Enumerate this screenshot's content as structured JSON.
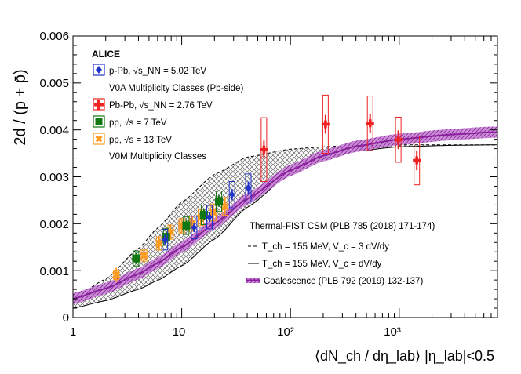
{
  "chart_data": {
    "type": "scatter",
    "title": "",
    "xlabel": "⟨dN_ch / dη_lab⟩ |η_lab|<0.5",
    "ylabel": "2d / (p + p̄)",
    "xscale": "log",
    "xlim": [
      1,
      8000
    ],
    "ylim": [
      0,
      0.006
    ],
    "yticks": [
      "0",
      "0.001",
      "0.002",
      "0.003",
      "0.004",
      "0.005",
      "0.006"
    ],
    "xticks": [
      "1",
      "10",
      "10²",
      "10³"
    ],
    "legend_left": {
      "experiment": "ALICE",
      "items": [
        "p-Pb, √s_NN = 5.02 TeV",
        "V0A Multiplicity Classes (Pb-side)",
        "Pb-Pb, √s_NN = 2.76 TeV",
        "pp, √s = 7 TeV",
        "pp, √s = 13 TeV",
        "V0M Multiplicity Classes"
      ]
    },
    "legend_right": {
      "title": "Thermal-FIST CSM (PLB 785 (2018) 171-174)",
      "items": [
        "T_ch = 155 MeV, V_c = 3 dV/dy",
        "T_ch = 155 MeV, V_c = dV/dy",
        "Coalescence (PLB 792 (2019) 132-137)"
      ]
    },
    "series": [
      {
        "name": "pp 13 TeV",
        "color": "#FF9A1E",
        "points": [
          {
            "x": 2.5,
            "y": 0.00091,
            "ye": 0.00015,
            "yse": 0.0001
          },
          {
            "x": 4.5,
            "y": 0.00132,
            "ye": 0.00015,
            "yse": 0.00012
          },
          {
            "x": 6.2,
            "y": 0.00158,
            "ye": 0.00015,
            "yse": 0.00014
          },
          {
            "x": 7.9,
            "y": 0.00182,
            "ye": 0.00016,
            "yse": 0.00015
          },
          {
            "x": 10.0,
            "y": 0.00195,
            "ye": 0.00016,
            "yse": 0.00016
          },
          {
            "x": 12.5,
            "y": 0.002,
            "ye": 0.00016,
            "yse": 0.00016
          },
          {
            "x": 15.0,
            "y": 0.00213,
            "ye": 0.00016,
            "yse": 0.00017
          },
          {
            "x": 19.5,
            "y": 0.00224,
            "ye": 0.00016,
            "yse": 0.00018
          },
          {
            "x": 25.0,
            "y": 0.00237,
            "ye": 0.00017,
            "yse": 0.00019
          }
        ]
      },
      {
        "name": "pp 7 TeV",
        "color": "#117711",
        "points": [
          {
            "x": 3.8,
            "y": 0.00126,
            "ye": 0.00012,
            "yse": 0.00016
          },
          {
            "x": 7.2,
            "y": 0.00172,
            "ye": 0.00012,
            "yse": 0.00018
          },
          {
            "x": 11.0,
            "y": 0.00196,
            "ye": 0.00012,
            "yse": 0.00019
          },
          {
            "x": 16.0,
            "y": 0.00219,
            "ye": 0.00012,
            "yse": 0.00021
          },
          {
            "x": 22.0,
            "y": 0.00248,
            "ye": 0.00012,
            "yse": 0.00022
          }
        ]
      },
      {
        "name": "p-Pb 5.02 TeV",
        "color": "#2233CC",
        "points": [
          {
            "x": 7.0,
            "y": 0.00166,
            "ye": 0.0001,
            "yse": 0.00022
          },
          {
            "x": 13.0,
            "y": 0.00192,
            "ye": 0.0001,
            "yse": 0.00024
          },
          {
            "x": 18.0,
            "y": 0.00214,
            "ye": 0.0001,
            "yse": 0.00025
          },
          {
            "x": 29.0,
            "y": 0.00262,
            "ye": 0.00012,
            "yse": 0.00028
          },
          {
            "x": 41.0,
            "y": 0.00276,
            "ye": 0.00014,
            "yse": 0.0003
          }
        ]
      },
      {
        "name": "Pb-Pb 2.76 TeV",
        "color": "#EE2222",
        "points": [
          {
            "x": 57,
            "y": 0.00358,
            "ye": 0.00019,
            "yse": 0.00068
          },
          {
            "x": 210,
            "y": 0.00412,
            "ye": 0.0002,
            "yse": 0.00062
          },
          {
            "x": 540,
            "y": 0.00414,
            "ye": 0.0002,
            "yse": 0.00058
          },
          {
            "x": 980,
            "y": 0.00379,
            "ye": 0.0002,
            "yse": 0.00048
          },
          {
            "x": 1450,
            "y": 0.00335,
            "ye": 0.00021,
            "yse": 0.00052
          }
        ]
      }
    ],
    "models": {
      "csm_3v": {
        "x": [
          1,
          2,
          4,
          6,
          10,
          20,
          40,
          100,
          200,
          400,
          1000,
          3000,
          7000
        ],
        "y": [
          0.00041,
          0.00082,
          0.00147,
          0.00191,
          0.00246,
          0.00305,
          0.00342,
          0.00359,
          0.00364,
          0.00367,
          0.00368,
          0.00368,
          0.00368
        ]
      },
      "csm_1v": {
        "x": [
          1,
          2,
          4,
          6,
          10,
          20,
          40,
          100,
          200,
          400,
          1000,
          3000,
          7000
        ],
        "y": [
          0.0002,
          0.00036,
          0.0006,
          0.00079,
          0.0011,
          0.00167,
          0.00235,
          0.00307,
          0.00338,
          0.00355,
          0.00364,
          0.00367,
          0.00368
        ]
      },
      "coalescence": {
        "x": [
          1,
          2,
          4,
          6,
          10,
          20,
          40,
          100,
          200,
          400,
          1000,
          3000,
          7000
        ],
        "y": [
          0.0004,
          0.00062,
          0.00093,
          0.00116,
          0.0015,
          0.002,
          0.00253,
          0.00314,
          0.00345,
          0.00365,
          0.0038,
          0.0039,
          0.00395
        ],
        "band": 0.00012
      }
    }
  }
}
